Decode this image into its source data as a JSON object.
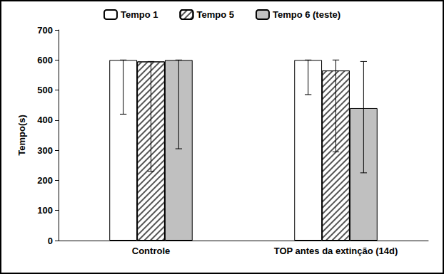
{
  "chart_data": {
    "type": "bar",
    "y_label": "Tempo(s)",
    "categories": [
      "Controle",
      "TOP antes da extinção (14d)"
    ],
    "series": [
      {
        "name": "Tempo 1",
        "color": "#ffffff",
        "values": [
          600,
          600
        ],
        "error_bars": [
          [
            420,
            600
          ],
          [
            485,
            600
          ]
        ]
      },
      {
        "name": "Tempo 5",
        "color": "#ffffff",
        "marker": "hatch",
        "values": [
          595,
          565
        ],
        "error_bars": [
          [
            230,
            595
          ],
          [
            295,
            600
          ]
        ]
      },
      {
        "name": "Tempo 6 (teste)",
        "color": "#c0c0c0",
        "values": [
          600,
          440
        ],
        "error_bars": [
          [
            305,
            600
          ],
          [
            225,
            595
          ]
        ]
      }
    ],
    "ylim": [
      0,
      700
    ],
    "yticks": [
      0,
      100,
      200,
      300,
      400,
      500,
      600,
      700
    ],
    "grid": false,
    "legend": "top"
  }
}
